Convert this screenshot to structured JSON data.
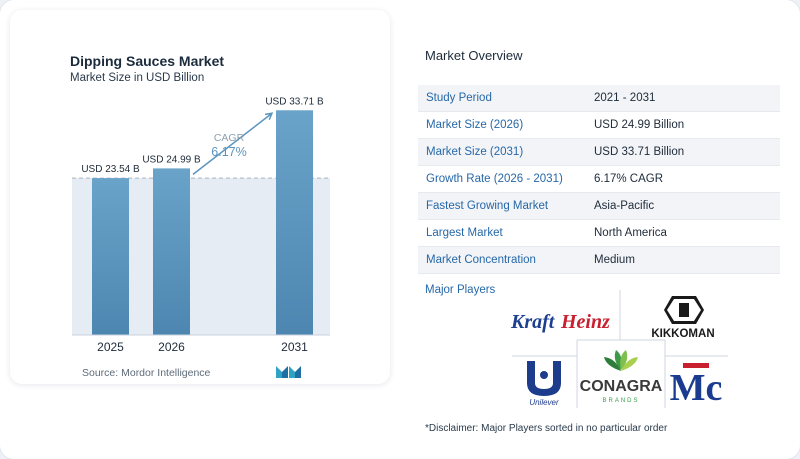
{
  "chart": {
    "title": "Dipping Sauces Market",
    "subtitle": "Market Size in USD Billion",
    "cagr_label": "CAGR",
    "cagr_value": "6.17%",
    "source": "Source: Mordor Intelligence"
  },
  "chart_data": {
    "type": "bar",
    "title": "Dipping Sauces Market",
    "subtitle": "Market Size in USD Billion",
    "categories": [
      "2025",
      "2026",
      "2031"
    ],
    "values": [
      23.54,
      24.99,
      33.71
    ],
    "data_labels": [
      "USD 23.54 B",
      "USD 24.99 B",
      "USD 33.71 B"
    ],
    "annotation": {
      "label": "CAGR",
      "value": "6.17%"
    },
    "ylim": [
      0,
      36
    ],
    "grid": false,
    "color": "#5b95bd"
  },
  "overview": {
    "title": "Market Overview",
    "rows": [
      {
        "label": "Study Period",
        "value": "2021 - 2031"
      },
      {
        "label": "Market Size (2026)",
        "value": "USD 24.99 Billion"
      },
      {
        "label": "Market Size (2031)",
        "value": "USD 33.71 Billion"
      },
      {
        "label": "Growth Rate (2026 - 2031)",
        "value": "6.17% CAGR"
      },
      {
        "label": "Fastest Growing Market",
        "value": "Asia-Pacific"
      },
      {
        "label": "Largest Market",
        "value": "North America"
      },
      {
        "label": "Market Concentration",
        "value": "Medium"
      }
    ]
  },
  "players": {
    "title": "Major Players",
    "logos": [
      "KraftHeinz",
      "KIKKOMAN",
      "Unilever",
      "CONAGRA",
      "BRANDS",
      "McCormick"
    ]
  },
  "disclaimer": "*Disclaimer: Major Players sorted in no particular order",
  "colors": {
    "bar": "#5b95bd",
    "accent": "#2668a8",
    "kraft_red": "#c8202f",
    "kraft_blue": "#1d3f8f",
    "conagra_green": "#3b9a48"
  }
}
